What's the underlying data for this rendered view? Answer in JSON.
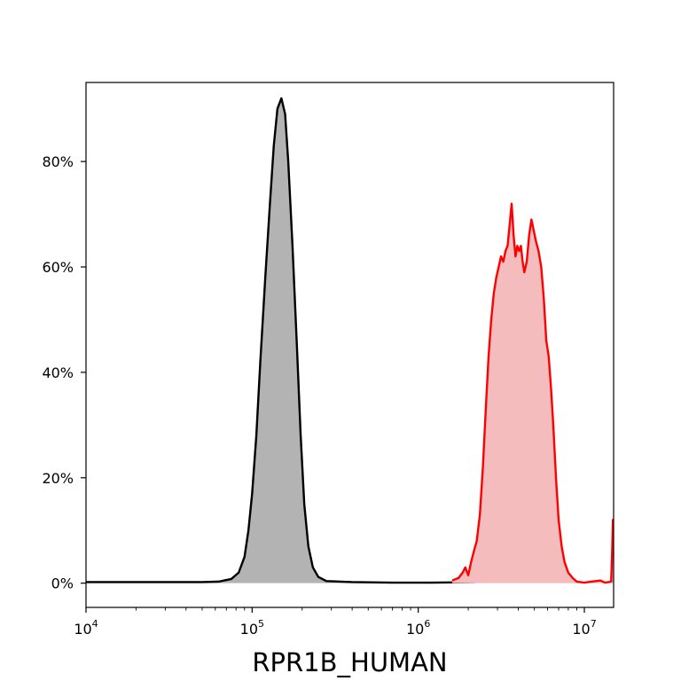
{
  "chart_data": {
    "type": "area",
    "title": "",
    "xlabel": "RPR1B_HUMAN",
    "ylabel": "",
    "x_scale": "log",
    "xlim": [
      10000,
      15000000
    ],
    "ylim": [
      -0.046,
      0.95
    ],
    "grid": false,
    "x_ticks": [
      {
        "value": 10000,
        "base": "10",
        "exp": "4"
      },
      {
        "value": 100000,
        "base": "10",
        "exp": "5"
      },
      {
        "value": 1000000,
        "base": "10",
        "exp": "6"
      },
      {
        "value": 10000000,
        "base": "10",
        "exp": "7"
      }
    ],
    "y_ticks": [
      {
        "value": 0,
        "label": "0%"
      },
      {
        "value": 0.2,
        "label": "20%"
      },
      {
        "value": 0.4,
        "label": "40%"
      },
      {
        "value": 0.6,
        "label": "60%"
      },
      {
        "value": 0.8,
        "label": "80%"
      }
    ],
    "series": [
      {
        "line_color": "#000000",
        "fill_color": "#b3b3b3",
        "points": [
          [
            10000,
            0.002
          ],
          [
            31600,
            0.002
          ],
          [
            50100,
            0.002
          ],
          [
            63100,
            0.003
          ],
          [
            75000,
            0.008
          ],
          [
            83000,
            0.02
          ],
          [
            90000,
            0.05
          ],
          [
            95000,
            0.1
          ],
          [
            100000,
            0.17
          ],
          [
            106000,
            0.28
          ],
          [
            112000,
            0.42
          ],
          [
            120000,
            0.58
          ],
          [
            128000,
            0.72
          ],
          [
            135000,
            0.83
          ],
          [
            142000,
            0.9
          ],
          [
            150000,
            0.92
          ],
          [
            158000,
            0.89
          ],
          [
            165000,
            0.8
          ],
          [
            175000,
            0.64
          ],
          [
            186000,
            0.45
          ],
          [
            196000,
            0.28
          ],
          [
            206000,
            0.15
          ],
          [
            218000,
            0.07
          ],
          [
            232000,
            0.03
          ],
          [
            250000,
            0.012
          ],
          [
            280000,
            0.004
          ],
          [
            400000,
            0.002
          ],
          [
            700000,
            0.001
          ],
          [
            1200000,
            0.001
          ],
          [
            2200000,
            0.002
          ]
        ]
      },
      {
        "line_color": "#ff0000",
        "fill_color": "#f4bcbc",
        "points": [
          [
            1600000,
            0.005
          ],
          [
            1750000,
            0.01
          ],
          [
            1850000,
            0.02
          ],
          [
            1920000,
            0.03
          ],
          [
            2000000,
            0.015
          ],
          [
            2080000,
            0.04
          ],
          [
            2160000,
            0.06
          ],
          [
            2250000,
            0.08
          ],
          [
            2350000,
            0.13
          ],
          [
            2450000,
            0.22
          ],
          [
            2550000,
            0.33
          ],
          [
            2650000,
            0.43
          ],
          [
            2750000,
            0.5
          ],
          [
            2850000,
            0.55
          ],
          [
            2950000,
            0.58
          ],
          [
            3050000,
            0.6
          ],
          [
            3150000,
            0.62
          ],
          [
            3250000,
            0.61
          ],
          [
            3350000,
            0.63
          ],
          [
            3450000,
            0.64
          ],
          [
            3550000,
            0.68
          ],
          [
            3650000,
            0.72
          ],
          [
            3750000,
            0.66
          ],
          [
            3850000,
            0.62
          ],
          [
            3950000,
            0.64
          ],
          [
            4050000,
            0.63
          ],
          [
            4150000,
            0.64
          ],
          [
            4250000,
            0.61
          ],
          [
            4350000,
            0.59
          ],
          [
            4500000,
            0.61
          ],
          [
            4650000,
            0.66
          ],
          [
            4800000,
            0.69
          ],
          [
            4950000,
            0.67
          ],
          [
            5100000,
            0.65
          ],
          [
            5300000,
            0.63
          ],
          [
            5500000,
            0.6
          ],
          [
            5700000,
            0.54
          ],
          [
            5900000,
            0.46
          ],
          [
            6100000,
            0.43
          ],
          [
            6300000,
            0.37
          ],
          [
            6500000,
            0.3
          ],
          [
            6750000,
            0.2
          ],
          [
            7000000,
            0.12
          ],
          [
            7300000,
            0.07
          ],
          [
            7600000,
            0.04
          ],
          [
            8000000,
            0.02
          ],
          [
            8500000,
            0.01
          ],
          [
            9000000,
            0.003
          ],
          [
            10000000,
            0.001
          ],
          [
            11000000,
            0.003
          ],
          [
            12500000,
            0.005
          ],
          [
            13300000,
            0.001
          ],
          [
            14000000,
            0.002
          ],
          [
            14500000,
            0.003
          ],
          [
            14700000,
            0.06
          ],
          [
            14850000,
            0.12
          ],
          [
            15000000,
            0.12
          ]
        ]
      }
    ]
  }
}
